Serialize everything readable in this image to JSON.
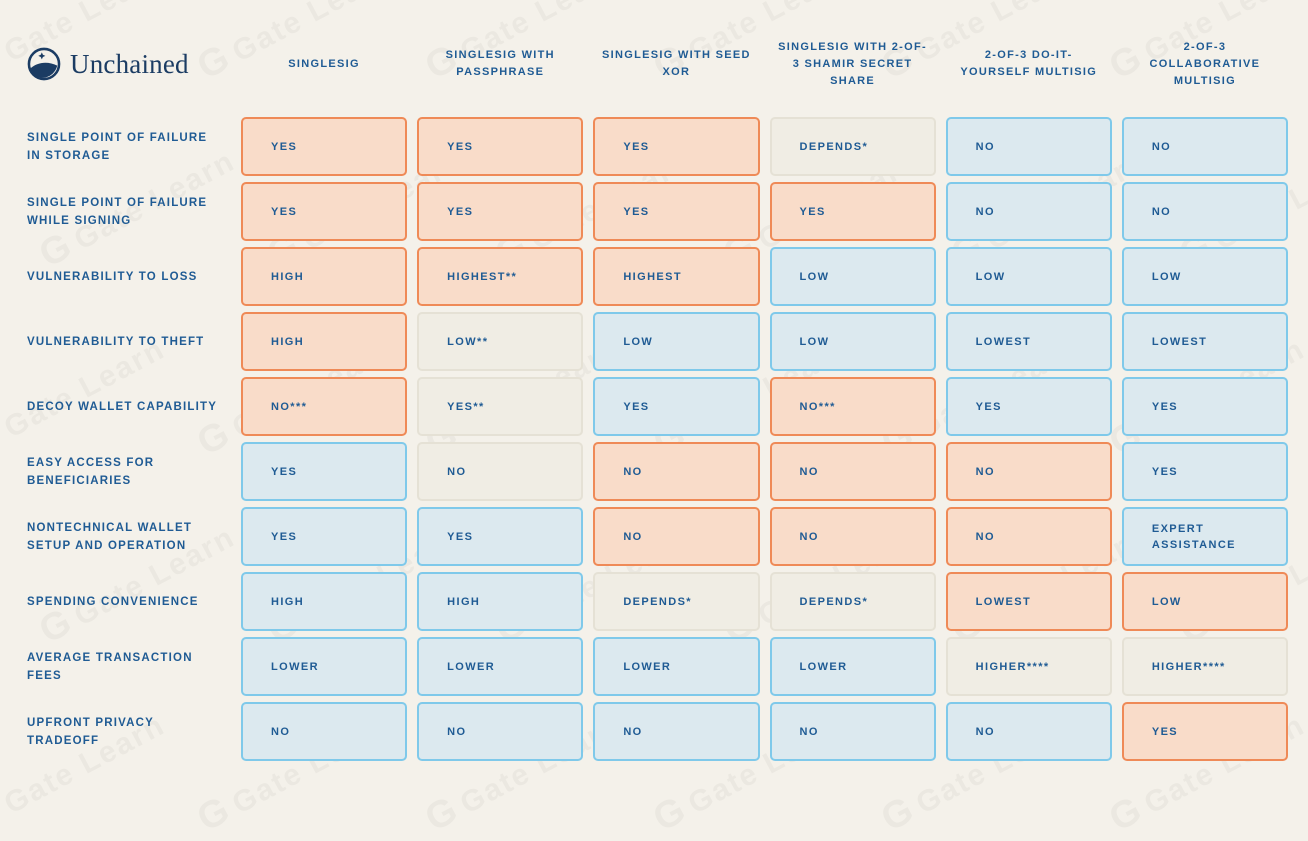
{
  "brand": {
    "name": "Unchained",
    "logo_icon": "unchained-circle-logo"
  },
  "watermark": {
    "g": "G",
    "text": "Gate Learn"
  },
  "colors": {
    "bg": "#F4F1EA",
    "navy": "#1F5B94",
    "navy_dark": "#1B3C63",
    "bad_fill": "#F9DCC9",
    "bad_border": "#EF8A57",
    "good_fill": "#DCE9EF",
    "good_border": "#7FC9EA",
    "neutral_fill": "#F0EDE4",
    "neutral_border": "#E5E1D5"
  },
  "status_legend": {
    "bad": "orange",
    "good": "blue",
    "neutral": "beige"
  },
  "chart_data": {
    "type": "table",
    "columns": [
      "SINGLESIG",
      "SINGLESIG WITH PASSPHRASE",
      "SINGLESIG WITH SEED XOR",
      "SINGLESIG WITH 2-OF-3 SHAMIR SECRET SHARE",
      "2-OF-3 DO-IT-YOURSELF MULTISIG",
      "2-OF-3 COLLABORATIVE MULTISIG"
    ],
    "rows": [
      {
        "label": "SINGLE POINT OF FAILURE IN STORAGE",
        "cells": [
          {
            "text": "YES",
            "status": "bad"
          },
          {
            "text": "YES",
            "status": "bad"
          },
          {
            "text": "YES",
            "status": "bad"
          },
          {
            "text": "DEPENDS*",
            "status": "neutral"
          },
          {
            "text": "NO",
            "status": "good"
          },
          {
            "text": "NO",
            "status": "good"
          }
        ]
      },
      {
        "label": "SINGLE POINT OF FAILURE WHILE SIGNING",
        "cells": [
          {
            "text": "YES",
            "status": "bad"
          },
          {
            "text": "YES",
            "status": "bad"
          },
          {
            "text": "YES",
            "status": "bad"
          },
          {
            "text": "YES",
            "status": "bad"
          },
          {
            "text": "NO",
            "status": "good"
          },
          {
            "text": "NO",
            "status": "good"
          }
        ]
      },
      {
        "label": "VULNERABILITY TO LOSS",
        "cells": [
          {
            "text": "HIGH",
            "status": "bad"
          },
          {
            "text": "HIGHEST**",
            "status": "bad"
          },
          {
            "text": "HIGHEST",
            "status": "bad"
          },
          {
            "text": "LOW",
            "status": "good"
          },
          {
            "text": "LOW",
            "status": "good"
          },
          {
            "text": "LOW",
            "status": "good"
          }
        ]
      },
      {
        "label": "VULNERABILITY TO THEFT",
        "cells": [
          {
            "text": "HIGH",
            "status": "bad"
          },
          {
            "text": "LOW**",
            "status": "neutral"
          },
          {
            "text": "LOW",
            "status": "good"
          },
          {
            "text": "LOW",
            "status": "good"
          },
          {
            "text": "LOWEST",
            "status": "good"
          },
          {
            "text": "LOWEST",
            "status": "good"
          }
        ]
      },
      {
        "label": "DECOY WALLET CAPABILITY",
        "cells": [
          {
            "text": "NO***",
            "status": "bad"
          },
          {
            "text": "YES**",
            "status": "neutral"
          },
          {
            "text": "YES",
            "status": "good"
          },
          {
            "text": "NO***",
            "status": "bad"
          },
          {
            "text": "YES",
            "status": "good"
          },
          {
            "text": "YES",
            "status": "good"
          }
        ]
      },
      {
        "label": "EASY ACCESS FOR BENEFICIARIES",
        "cells": [
          {
            "text": "YES",
            "status": "good"
          },
          {
            "text": "NO",
            "status": "neutral"
          },
          {
            "text": "NO",
            "status": "bad"
          },
          {
            "text": "NO",
            "status": "bad"
          },
          {
            "text": "NO",
            "status": "bad"
          },
          {
            "text": "YES",
            "status": "good"
          }
        ]
      },
      {
        "label": "NONTECHNICAL WALLET SETUP AND OPERATION",
        "cells": [
          {
            "text": "YES",
            "status": "good"
          },
          {
            "text": "YES",
            "status": "good"
          },
          {
            "text": "NO",
            "status": "bad"
          },
          {
            "text": "NO",
            "status": "bad"
          },
          {
            "text": "NO",
            "status": "bad"
          },
          {
            "text": "EXPERT ASSISTANCE",
            "status": "good"
          }
        ]
      },
      {
        "label": "SPENDING CONVENIENCE",
        "cells": [
          {
            "text": "HIGH",
            "status": "good"
          },
          {
            "text": "HIGH",
            "status": "good"
          },
          {
            "text": "DEPENDS*",
            "status": "neutral"
          },
          {
            "text": "DEPENDS*",
            "status": "neutral"
          },
          {
            "text": "LOWEST",
            "status": "bad"
          },
          {
            "text": "LOW",
            "status": "bad"
          }
        ]
      },
      {
        "label": "AVERAGE TRANSACTION FEES",
        "cells": [
          {
            "text": "LOWER",
            "status": "good"
          },
          {
            "text": "LOWER",
            "status": "good"
          },
          {
            "text": "LOWER",
            "status": "good"
          },
          {
            "text": "LOWER",
            "status": "good"
          },
          {
            "text": "HIGHER****",
            "status": "neutral"
          },
          {
            "text": "HIGHER****",
            "status": "neutral"
          }
        ]
      },
      {
        "label": "UPFRONT PRIVACY TRADEOFF",
        "cells": [
          {
            "text": "NO",
            "status": "good"
          },
          {
            "text": "NO",
            "status": "good"
          },
          {
            "text": "NO",
            "status": "good"
          },
          {
            "text": "NO",
            "status": "good"
          },
          {
            "text": "NO",
            "status": "good"
          },
          {
            "text": "YES",
            "status": "bad"
          }
        ]
      }
    ]
  }
}
